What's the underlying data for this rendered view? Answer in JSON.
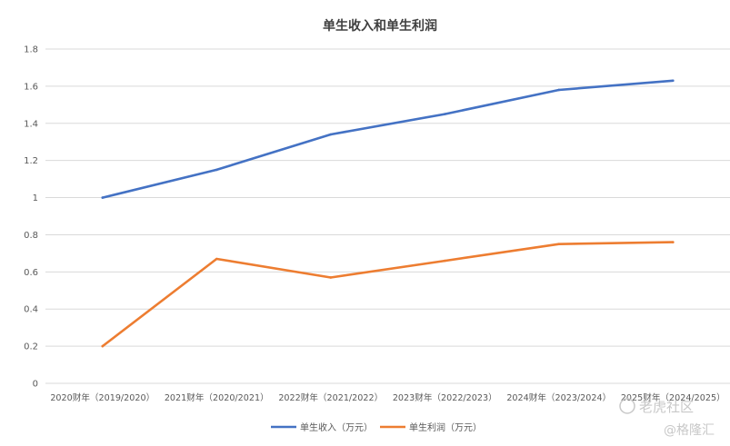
{
  "chart_data": {
    "type": "line",
    "title": "单生收入和单生利润",
    "categories": [
      "2020财年（2019/2020）",
      "2021财年（2020/2021）",
      "2022财年（2021/2022）",
      "2023财年（2022/2023）",
      "2024财年（2023/2024）",
      "2025财年（2024/2025）"
    ],
    "series": [
      {
        "name": "单生收入（万元）",
        "color": "#4472c4",
        "values": [
          1.0,
          1.15,
          1.34,
          1.45,
          1.58,
          1.63
        ]
      },
      {
        "name": "单生利润（万元）",
        "color": "#ed7d31",
        "values": [
          0.2,
          0.67,
          0.57,
          0.66,
          0.75,
          0.76
        ]
      }
    ],
    "y_ticks": [
      "0",
      "0.2",
      "0.4",
      "0.6",
      "0.8",
      "1",
      "1.2",
      "1.4",
      "1.6",
      "1.8"
    ],
    "ylim": [
      0,
      1.8
    ],
    "grid": true,
    "legend_position": "bottom"
  },
  "watermarks": {
    "tiger": "老虎社区",
    "gelonghui": "@格隆汇"
  }
}
